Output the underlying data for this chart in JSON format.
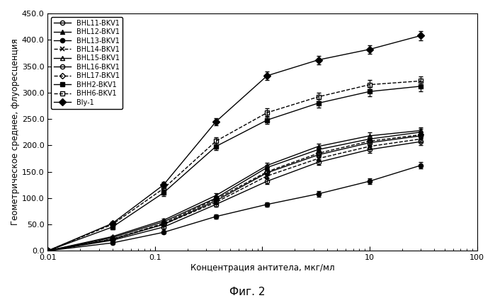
{
  "title": "",
  "xlabel": "Концентрация антитела, мкг/мл",
  "ylabel": "Геометрическое среднее, флуоресценция",
  "fig_caption": "Фиг. 2",
  "xlim": [
    0.01,
    100
  ],
  "ylim": [
    0,
    450
  ],
  "yticks": [
    0.0,
    50.0,
    100.0,
    150.0,
    200.0,
    250.0,
    300.0,
    350.0,
    400.0,
    450.0
  ],
  "ytick_labels": [
    "0.0",
    "50.0",
    "100.0",
    "150.0",
    "200.0",
    "250.0",
    "300.0",
    "350.0",
    "400.0",
    "450.0"
  ],
  "x": [
    0.01,
    0.04,
    0.12,
    0.37,
    1.11,
    3.33,
    10,
    30
  ],
  "series": [
    {
      "label": "BHL11-BKV1",
      "marker": "o",
      "fillstyle": "none",
      "linestyle": "-",
      "color": "#000000",
      "y": [
        0,
        22,
        50,
        95,
        148,
        182,
        205,
        218
      ],
      "yerr": [
        0,
        2,
        3,
        4,
        5,
        5,
        6,
        6
      ]
    },
    {
      "label": "BHL12-BKV1",
      "marker": "^",
      "fillstyle": "full",
      "linestyle": "-",
      "color": "#000000",
      "y": [
        0,
        25,
        55,
        100,
        158,
        192,
        212,
        225
      ],
      "yerr": [
        0,
        2,
        3,
        4,
        5,
        5,
        6,
        6
      ]
    },
    {
      "label": "BHL13-BKV1",
      "marker": "o",
      "fillstyle": "full",
      "linestyle": "-",
      "color": "#000000",
      "y": [
        0,
        15,
        35,
        65,
        88,
        108,
        132,
        162
      ],
      "yerr": [
        0,
        2,
        3,
        4,
        4,
        5,
        5,
        6
      ]
    },
    {
      "label": "BHL14-BKV1",
      "marker": "x",
      "fillstyle": "full",
      "linestyle": "--",
      "color": "#000000",
      "y": [
        0,
        22,
        50,
        92,
        142,
        175,
        198,
        212
      ],
      "yerr": [
        0,
        2,
        3,
        4,
        5,
        5,
        6,
        6
      ]
    },
    {
      "label": "BHL15-BKV1",
      "marker": "^",
      "fillstyle": "none",
      "linestyle": "-",
      "color": "#000000",
      "y": [
        0,
        27,
        58,
        105,
        162,
        198,
        218,
        228
      ],
      "yerr": [
        0,
        2,
        3,
        4,
        5,
        5,
        6,
        6
      ]
    },
    {
      "label": "BHL16-BKV1",
      "marker": "o",
      "fillstyle": "none",
      "linestyle": "-",
      "color": "#000000",
      "y": [
        0,
        20,
        45,
        88,
        132,
        168,
        192,
        207
      ],
      "yerr": [
        0,
        2,
        3,
        4,
        5,
        5,
        6,
        6
      ]
    },
    {
      "label": "BHL17-BKV1",
      "marker": "D",
      "fillstyle": "none",
      "linestyle": "--",
      "color": "#000000",
      "y": [
        0,
        22,
        52,
        98,
        150,
        185,
        208,
        220
      ],
      "yerr": [
        0,
        2,
        3,
        4,
        5,
        5,
        6,
        6
      ]
    },
    {
      "label": "BHH2-BKV1",
      "marker": "s",
      "fillstyle": "full",
      "linestyle": "-",
      "color": "#000000",
      "y": [
        0,
        45,
        110,
        198,
        248,
        280,
        302,
        312
      ],
      "yerr": [
        0,
        4,
        6,
        7,
        8,
        8,
        9,
        9
      ]
    },
    {
      "label": "BHH6-BKV1",
      "marker": "s",
      "fillstyle": "none",
      "linestyle": "--",
      "color": "#000000",
      "y": [
        0,
        50,
        118,
        208,
        262,
        292,
        315,
        322
      ],
      "yerr": [
        0,
        4,
        6,
        7,
        8,
        8,
        9,
        9
      ]
    },
    {
      "label": "Bly-1",
      "marker": "D",
      "fillstyle": "full",
      "linestyle": "-",
      "color": "#000000",
      "y": [
        0,
        52,
        125,
        245,
        332,
        362,
        382,
        408
      ],
      "yerr": [
        0,
        4,
        6,
        7,
        8,
        8,
        8,
        9
      ]
    }
  ],
  "background_color": "#ffffff"
}
